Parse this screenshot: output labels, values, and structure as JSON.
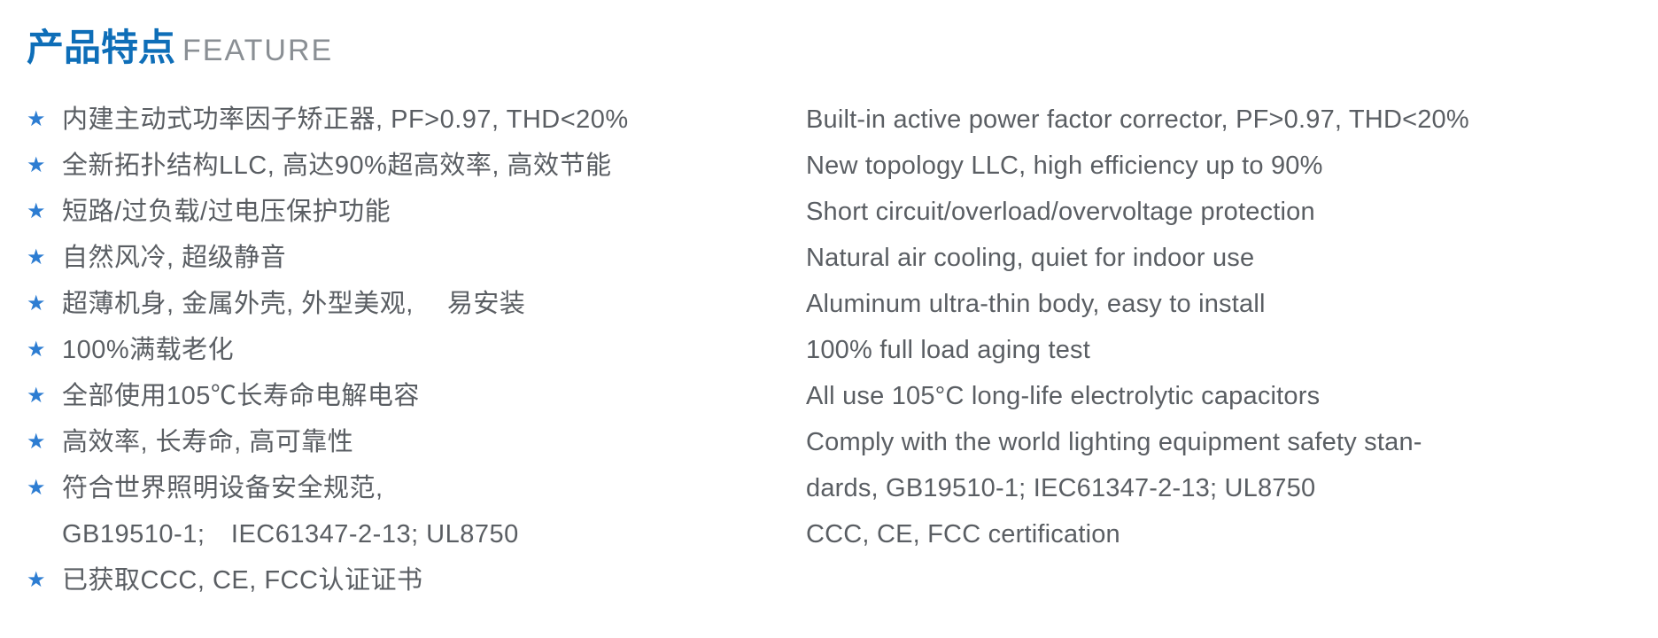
{
  "colors": {
    "heading_cn": "#0e6eb8",
    "heading_en": "#8a8f94",
    "star": "#2d7dd2",
    "text": "#5a5e63",
    "background": "#ffffff"
  },
  "typography": {
    "heading_cn_size": 42,
    "heading_en_size": 34,
    "body_size": 29,
    "star_size": 24,
    "line_height": 52
  },
  "heading": {
    "cn": "产品特点",
    "en": "FEATURE"
  },
  "bullet_char": "★",
  "features_cn": [
    "内建主动式功率因子矫正器, PF>0.97, THD<20%",
    "全新拓扑结构LLC, 高达90%超高效率, 高效节能",
    "短路/过负载/过电压保护功能",
    "自然风冷, 超级静音",
    "超薄机身, 金属外壳, 外型美观,　 易安装",
    "100%满载老化",
    "全部使用105℃长寿命电解电容",
    "高效率, 长寿命, 高可靠性",
    "符合世界照明设备安全规范,"
  ],
  "features_cn_continuation": "GB19510-1;　IEC61347-2-13; UL8750",
  "features_cn_last": "已获取CCC, CE, FCC认证证书",
  "features_en": [
    "Built-in active power factor corrector, PF>0.97, THD<20%",
    "New topology LLC, high efficiency  up to 90%",
    "Short circuit/overload/overvoltage protection",
    "Natural air cooling, quiet for indoor use",
    "Aluminum ultra-thin body, easy to install",
    "100% full load aging test",
    "All use 105°C long-life electrolytic capacitors",
    "Comply with the world lighting equipment safety stan-",
    "dards, GB19510-1; IEC61347-2-13; UL8750",
    "CCC, CE, FCC certification"
  ]
}
